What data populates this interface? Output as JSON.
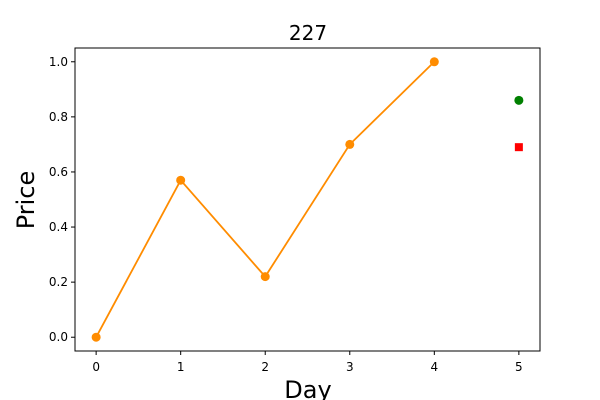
{
  "chart_data": {
    "type": "line",
    "title": "227",
    "xlabel": "Day",
    "ylabel": "Price",
    "xlim": [
      -0.25,
      5.25
    ],
    "ylim": [
      -0.05,
      1.05
    ],
    "x_ticks": [
      0,
      1,
      2,
      3,
      4,
      5
    ],
    "y_ticks": [
      0.0,
      0.2,
      0.4,
      0.6,
      0.8,
      1.0
    ],
    "x_tick_labels": [
      "0",
      "1",
      "2",
      "3",
      "4",
      "5"
    ],
    "y_tick_labels": [
      "0.0",
      "0.2",
      "0.4",
      "0.6",
      "0.8",
      "1.0"
    ],
    "grid": false,
    "series": [
      {
        "x": [
          0,
          1,
          2,
          3,
          4
        ],
        "values": [
          0.0,
          0.57,
          0.22,
          0.7,
          1.0
        ],
        "color": "#ff8c00",
        "marker": "circle"
      }
    ],
    "extra_points": [
      {
        "x": 5,
        "y": 0.86,
        "color": "#008000",
        "marker": "circle"
      },
      {
        "x": 5,
        "y": 0.69,
        "color": "#ff0000",
        "marker": "square"
      }
    ]
  }
}
